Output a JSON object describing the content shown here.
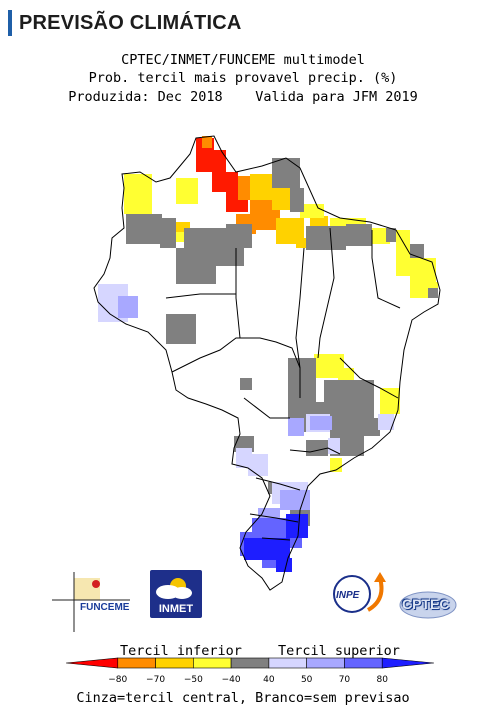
{
  "header": {
    "title": "PREVISÃO CLIMÁTICA"
  },
  "map_header": {
    "line1": "CPTEC/INMET/FUNCEME multimodel",
    "line2": "Prob. tercil mais provavel precip. (%)",
    "produced": "Produzida: Dec 2018",
    "valid": "Valida para JFM 2019"
  },
  "map": {
    "region": "Brazil",
    "colors": {
      "below_80": "#ff1a00",
      "below_70": "#ff8c00",
      "below_50": "#ffd200",
      "below_40": "#ffff32",
      "normal": "#808080",
      "above_40": "#d6d6ff",
      "above_50": "#a8a8ff",
      "above_70": "#6464ff",
      "above_80": "#1e1eff",
      "outline": "#000000"
    }
  },
  "logos": {
    "funceme": "FUNCEME",
    "inmet": "INMET",
    "inpe": "INPE",
    "cptec": "CPTEC"
  },
  "legend": {
    "label_inferior": "Tercil inferior",
    "label_superior": "Tercil superior",
    "ticks": [
      "−80",
      "−70",
      "−50",
      "−40",
      "40",
      "50",
      "70",
      "80"
    ],
    "colors": [
      "#ff0000",
      "#ff8c00",
      "#ffd200",
      "#ffff32",
      "#808080",
      "#d6d6ff",
      "#a8a8ff",
      "#6464ff",
      "#1e1eff"
    ],
    "note": "Cinza=tercil central, Branco=sem previsao"
  }
}
